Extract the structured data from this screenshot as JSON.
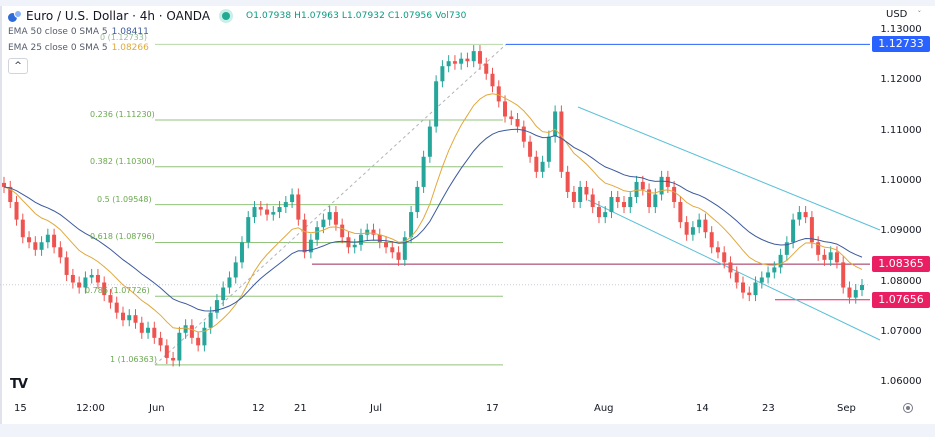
{
  "header": {
    "symbol_title": "Euro / U.S. Dollar · 4h · OANDA",
    "ohlc": {
      "open_label": "O",
      "open": "1.07938",
      "high_label": "H",
      "high": "1.07963",
      "low_label": "L",
      "low": "1.07932",
      "close_label": "C",
      "close": "1.07956",
      "vol_label": "Vol",
      "vol": "730"
    },
    "indicators": [
      {
        "label": "EMA 50 close 0 SMA 5",
        "value": "1.08411",
        "color": "#3d5a9e"
      },
      {
        "label": "EMA 25 close 0 SMA 5",
        "value": "1.08266",
        "color": "#e0a93c"
      }
    ],
    "collapse_icon": "chevron-up-icon"
  },
  "price_axis": {
    "currency": "USD",
    "ticks": [
      "1.13000",
      "1.12000",
      "1.11000",
      "1.10000",
      "1.09000",
      "1.08000",
      "1.07000",
      "1.06000"
    ],
    "tags": [
      {
        "value": "1.12733",
        "color": "#2962ff"
      },
      {
        "value": "1.08365",
        "color": "#e91e63"
      },
      {
        "value": "1.07656",
        "color": "#e91e63"
      }
    ]
  },
  "time_axis": {
    "ticks": [
      "15",
      "12:00",
      "Jun",
      "12",
      "21",
      "Jul",
      "17",
      "Aug",
      "14",
      "23",
      "Sep"
    ]
  },
  "settings_icon": "gear-icon",
  "logo": "TV",
  "chart_data": {
    "type": "candlestick",
    "title": "Euro / U.S. Dollar · 4h · OANDA",
    "xlabel": "",
    "ylabel": "USD",
    "ylim": [
      1.055,
      1.131
    ],
    "x_ticks": [
      "15",
      "12:00",
      "Jun",
      "12",
      "21",
      "Jul",
      "17",
      "Aug",
      "14",
      "23",
      "Sep"
    ],
    "closes_approx": [
      1.099,
      1.096,
      1.0925,
      1.089,
      1.088,
      1.0865,
      1.088,
      1.0895,
      1.087,
      1.085,
      1.0815,
      1.08,
      1.079,
      1.081,
      1.0815,
      1.08,
      1.0775,
      1.076,
      1.074,
      1.0725,
      1.0735,
      1.072,
      1.07,
      1.071,
      1.069,
      1.0675,
      1.065,
      1.0645,
      1.07,
      1.0715,
      1.069,
      1.0675,
      1.071,
      1.074,
      1.0765,
      1.079,
      1.081,
      1.084,
      1.088,
      1.093,
      1.095,
      1.0945,
      1.0935,
      1.094,
      1.095,
      1.096,
      1.0975,
      1.0925,
      1.086,
      1.0885,
      1.091,
      1.0925,
      1.094,
      1.0915,
      1.089,
      1.087,
      1.0875,
      1.0895,
      1.0905,
      1.0895,
      1.088,
      1.087,
      1.086,
      1.0845,
      1.089,
      1.094,
      1.099,
      1.105,
      1.111,
      1.12,
      1.123,
      1.124,
      1.1235,
      1.1245,
      1.124,
      1.126,
      1.1235,
      1.1215,
      1.119,
      1.116,
      1.113,
      1.1125,
      1.111,
      1.108,
      1.105,
      1.102,
      1.104,
      1.109,
      1.114,
      1.102,
      1.098,
      1.096,
      1.099,
      1.0975,
      1.095,
      1.093,
      1.094,
      1.097,
      1.096,
      1.095,
      1.097,
      1.1,
      1.0985,
      1.095,
      1.0975,
      1.101,
      1.099,
      1.096,
      1.092,
      1.0895,
      1.091,
      1.0925,
      1.09,
      1.087,
      1.086,
      1.084,
      1.082,
      1.08,
      1.078,
      1.0775,
      1.08,
      1.081,
      1.082,
      1.083,
      1.0855,
      1.088,
      1.0925,
      1.094,
      1.093,
      1.088,
      1.0855,
      1.0845,
      1.086,
      1.084,
      1.079,
      1.077,
      1.0785,
      1.0795
    ],
    "series": [
      {
        "name": "EMA 50",
        "last": 1.08411,
        "color": "#3d5a9e"
      },
      {
        "name": "EMA 25",
        "last": 1.08266,
        "color": "#e0a93c"
      }
    ],
    "fibonacci": [
      {
        "level": "0",
        "price": 1.12733,
        "label": "0 (1.12733)"
      },
      {
        "level": "0.236",
        "price": 1.1123,
        "label": "0.236 (1.11230)"
      },
      {
        "level": "0.382",
        "price": 1.103,
        "label": "0.382 (1.10300)"
      },
      {
        "level": "0.5",
        "price": 1.09548,
        "label": "0.5 (1.09548)"
      },
      {
        "level": "0.618",
        "price": 1.08796,
        "label": "0.618 (1.08796)"
      },
      {
        "level": "0.786",
        "price": 1.07726,
        "label": "0.786 (1.07726)"
      },
      {
        "level": "1",
        "price": 1.06363,
        "label": "1 (1.06363)"
      }
    ],
    "horizontal_levels": [
      {
        "price": 1.12733,
        "color": "#2962ff"
      },
      {
        "price": 1.08365,
        "color": "#9c2758"
      },
      {
        "price": 1.07656,
        "color": "#e91e63"
      }
    ],
    "channel": {
      "type": "descending",
      "color": "#5cc0d8",
      "upper": [
        [
          0.6,
          1.115
        ],
        [
          1.0,
          1.0915
        ]
      ],
      "lower": [
        [
          0.6,
          1.097
        ],
        [
          1.0,
          1.069
        ]
      ]
    },
    "last_price": 1.07956
  }
}
